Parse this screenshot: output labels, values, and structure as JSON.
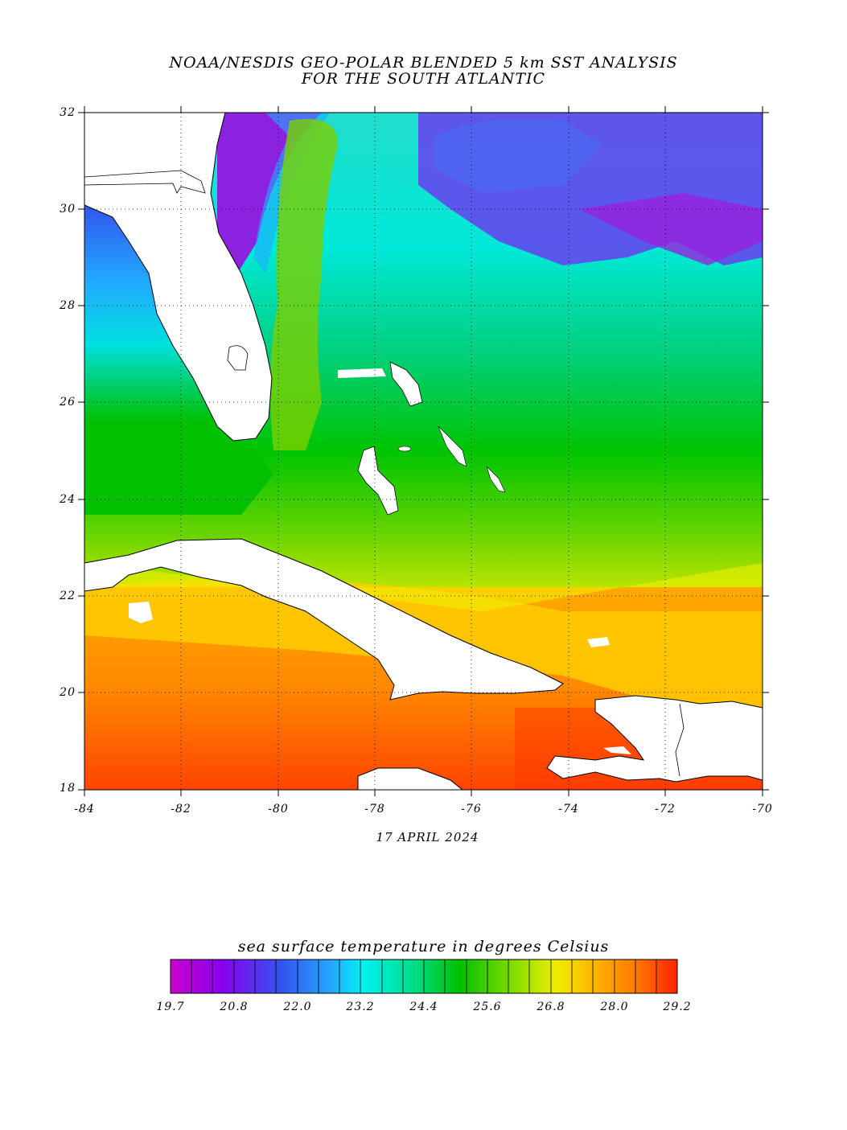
{
  "title": {
    "line1": "NOAA/NESDIS GEO-POLAR BLENDED 5 km SST ANALYSIS",
    "line2": "FOR THE SOUTH ATLANTIC"
  },
  "map": {
    "lat_range": [
      18,
      32
    ],
    "lon_range": [
      -84,
      -70
    ],
    "lat_ticks": [
      "32",
      "30",
      "28",
      "26",
      "24",
      "22",
      "20",
      "18"
    ],
    "lon_ticks": [
      "-84",
      "-82",
      "-80",
      "-78",
      "-76",
      "-74",
      "-72",
      "-70"
    ],
    "grid": "dotted every 2 degrees",
    "land_color": "#ffffff",
    "coastline_color": "#000000"
  },
  "date": "17 APRIL 2024",
  "colorbar": {
    "title": "sea surface temperature in degrees Celsius",
    "labels": [
      "19.7",
      "20.8",
      "22.0",
      "23.2",
      "24.4",
      "25.6",
      "26.8",
      "28.0",
      "29.2"
    ],
    "range": [
      19.7,
      29.2
    ],
    "colors": [
      "#cc00cc",
      "#8800ee",
      "#3355ee",
      "#22aaff",
      "#00f2f2",
      "#00dd88",
      "#00c000",
      "#88dd00",
      "#eeee00",
      "#ffaa00",
      "#ff7700",
      "#ff2200"
    ]
  }
}
